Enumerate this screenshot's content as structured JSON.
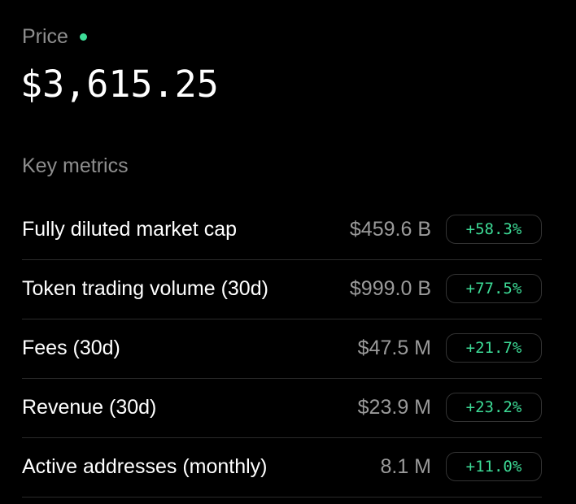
{
  "price": {
    "label": "Price",
    "value": "$3,615.25",
    "live_indicator_color": "#3ddc97"
  },
  "key_metrics": {
    "title": "Key metrics",
    "rows": [
      {
        "label": "Fully diluted market cap",
        "value": "$459.6 B",
        "change": "+58.3%"
      },
      {
        "label": "Token trading volume (30d)",
        "value": "$999.0 B",
        "change": "+77.5%"
      },
      {
        "label": "Fees (30d)",
        "value": "$47.5 M",
        "change": "+21.7%"
      },
      {
        "label": "Revenue (30d)",
        "value": "$23.9 M",
        "change": "+23.2%"
      },
      {
        "label": "Active addresses (monthly)",
        "value": "8.1 M",
        "change": "+11.0%"
      }
    ]
  },
  "colors": {
    "background": "#000000",
    "primary_text": "#ffffff",
    "muted_text": "#8e8e8e",
    "positive": "#3ddc97",
    "divider": "#2a2a2a"
  }
}
